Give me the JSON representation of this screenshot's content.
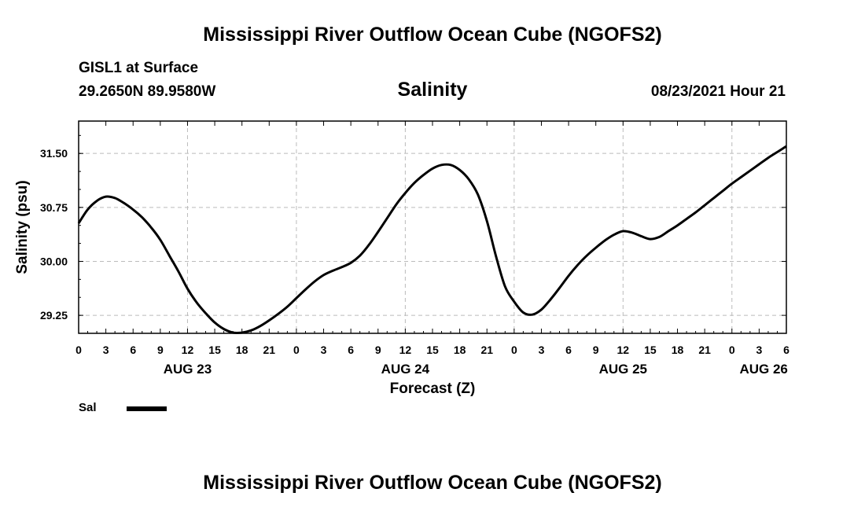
{
  "header": {
    "title": "Mississippi River Outflow Ocean Cube (NGOFS2)",
    "station": "GISL1 at Surface",
    "coords": "29.2650N  89.9580W",
    "variable_title": "Salinity",
    "datetime": "08/23/2021 Hour 21"
  },
  "footer": {
    "title": "Mississippi River Outflow Ocean Cube (NGOFS2)"
  },
  "legend": {
    "label": "Sal",
    "color": "#000000"
  },
  "chart_data": {
    "type": "line",
    "title": "Salinity",
    "xlabel": "Forecast (Z)",
    "ylabel": "Salinity (psu)",
    "xlim": [
      0,
      78
    ],
    "ylim": [
      29.0,
      31.95
    ],
    "yticks": [
      29.25,
      30.0,
      30.75,
      31.5
    ],
    "ytick_labels": [
      "29.25",
      "30.00",
      "30.75",
      "31.50"
    ],
    "xtick_labels": [
      "0",
      "3",
      "6",
      "9",
      "12",
      "15",
      "18",
      "21",
      "0",
      "3",
      "6",
      "9",
      "12",
      "15",
      "18",
      "21",
      "0",
      "3",
      "6",
      "9",
      "12",
      "15",
      "18",
      "21",
      "0",
      "3",
      "6"
    ],
    "day_labels": [
      {
        "label": "AUG 23",
        "hour": 12
      },
      {
        "label": "AUG 24",
        "hour": 36
      },
      {
        "label": "AUG 25",
        "hour": 60
      },
      {
        "label": "AUG 26",
        "hour": 75.5
      }
    ],
    "grid": true,
    "series": [
      {
        "name": "Sal",
        "x": [
          0,
          1,
          2,
          3,
          4,
          5,
          6,
          7,
          8,
          9,
          10,
          11,
          12,
          13,
          14,
          15,
          16,
          17,
          18,
          19,
          20,
          21,
          22,
          23,
          24,
          25,
          26,
          27,
          28,
          29,
          30,
          31,
          32,
          33,
          34,
          35,
          36,
          37,
          38,
          39,
          40,
          41,
          42,
          43,
          44,
          45,
          46,
          47,
          48,
          49,
          50,
          51,
          52,
          53,
          54,
          55,
          56,
          57,
          58,
          59,
          60,
          61,
          62,
          63,
          64,
          65,
          66,
          67,
          68,
          69,
          70,
          71,
          72,
          73,
          74,
          75,
          76,
          77,
          78
        ],
        "values": [
          30.53,
          30.72,
          30.84,
          30.9,
          30.88,
          30.81,
          30.72,
          30.61,
          30.47,
          30.3,
          30.08,
          29.86,
          29.62,
          29.43,
          29.28,
          29.15,
          29.06,
          29.01,
          29.01,
          29.04,
          29.1,
          29.18,
          29.27,
          29.37,
          29.49,
          29.61,
          29.72,
          29.81,
          29.87,
          29.92,
          29.98,
          30.08,
          30.23,
          30.41,
          30.6,
          30.79,
          30.95,
          31.09,
          31.2,
          31.29,
          31.34,
          31.34,
          31.27,
          31.14,
          30.93,
          30.56,
          30.07,
          29.65,
          29.44,
          29.29,
          29.26,
          29.33,
          29.47,
          29.63,
          29.8,
          29.95,
          30.08,
          30.19,
          30.29,
          30.37,
          30.42,
          30.4,
          30.35,
          30.31,
          30.34,
          30.42,
          30.5,
          30.59,
          30.68,
          30.78,
          30.88,
          30.98,
          31.08,
          31.17,
          31.26,
          31.35,
          31.44,
          31.52,
          31.6
        ]
      }
    ]
  }
}
